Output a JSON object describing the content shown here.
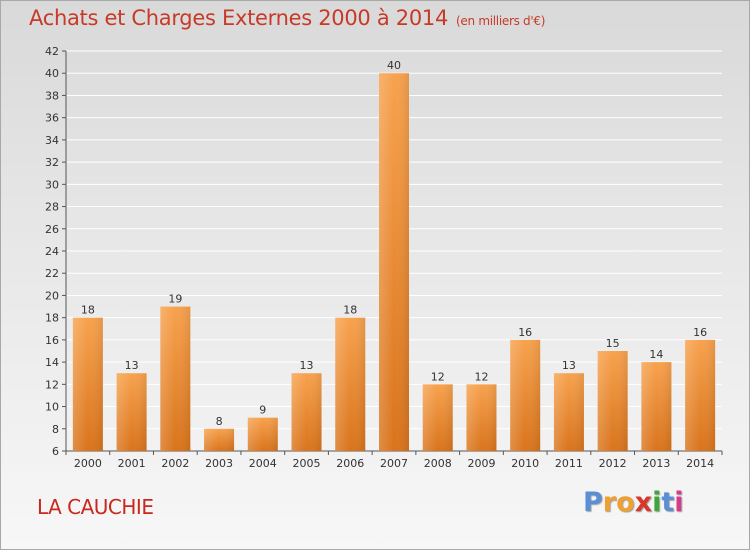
{
  "header": {
    "title": "Achats et Charges Externes 2000 à 2014",
    "unit": "(en milliers d'€)"
  },
  "footer": {
    "commune": "LA CAUCHIE",
    "logo": [
      "P",
      "r",
      "o",
      "x",
      "i",
      "t",
      "i"
    ]
  },
  "colors": {
    "bar_light": "#f7a24e",
    "bar_dark": "#d9741c",
    "title": "#c83a28",
    "logo": [
      "#5a8fd6",
      "#f0a030",
      "#f0a030",
      "#d8382a",
      "#3aa83a",
      "#5a8fd6",
      "#d83a8a"
    ]
  },
  "chart_data": {
    "type": "bar",
    "title": "Achats et Charges Externes 2000 à 2014",
    "subtitle": "(en milliers d'€)",
    "categories": [
      "2000",
      "2001",
      "2002",
      "2003",
      "2004",
      "2005",
      "2006",
      "2007",
      "2008",
      "2009",
      "2010",
      "2011",
      "2012",
      "2013",
      "2014"
    ],
    "values": [
      18,
      13,
      19,
      8,
      9,
      13,
      18,
      40,
      12,
      12,
      16,
      13,
      15,
      14,
      16
    ],
    "ylim": [
      6,
      42
    ],
    "yticks": [
      6,
      8,
      10,
      12,
      14,
      16,
      18,
      20,
      22,
      24,
      26,
      28,
      30,
      32,
      34,
      36,
      38,
      40,
      42
    ],
    "grid": true,
    "legend": "none"
  }
}
